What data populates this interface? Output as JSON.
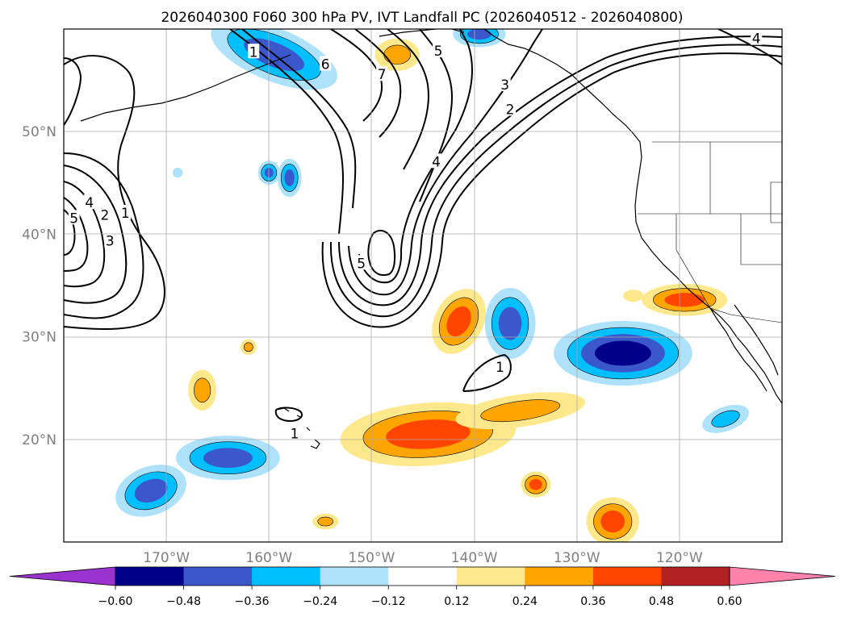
{
  "title": "2026040300 F060 300 hPa PV, IVT Landfall PC (2026040512 - 2026040800)",
  "map": {
    "lon_range": [
      -180,
      -110
    ],
    "lat_range": [
      10,
      60
    ],
    "lat_labels": [
      {
        "lat": 50,
        "label": "50°N"
      },
      {
        "lat": 40,
        "label": "40°N"
      },
      {
        "lat": 30,
        "label": "30°N"
      },
      {
        "lat": 20,
        "label": "20°N"
      }
    ],
    "lon_labels": [
      {
        "lon": -170,
        "label": "170°W"
      },
      {
        "lon": -160,
        "label": "160°W"
      },
      {
        "lon": -150,
        "label": "150°W"
      },
      {
        "lon": -140,
        "label": "140°W"
      },
      {
        "lon": -130,
        "label": "130°W"
      },
      {
        "lon": -120,
        "label": "120°W"
      }
    ],
    "colors": {
      "pos_012": "#fde98c",
      "pos_024": "#ffa500",
      "pos_036": "#ff4500",
      "neg_012": "#aee2fa",
      "neg_024": "#00bfff",
      "neg_036": "#3b57cc",
      "neg_048": "#00008b"
    },
    "ivt_blobs": [
      {
        "lon": -141.5,
        "lat": 31.5,
        "rx": 1.8,
        "ry": 2.8,
        "rot": 28,
        "level": 0.36
      },
      {
        "lon": -136.5,
        "lat": 31.3,
        "rx": 1.9,
        "ry": 2.9,
        "rot": 0,
        "level": -0.36
      },
      {
        "lon": -144.5,
        "lat": 20.5,
        "rx": 8.0,
        "ry": 2.5,
        "rot": -4,
        "level": 0.36
      },
      {
        "lon": -135.5,
        "lat": 22.8,
        "rx": 6.0,
        "ry": 1.2,
        "rot": -8,
        "level": 0.24
      },
      {
        "lon": -125.5,
        "lat": 28.4,
        "rx": 6.0,
        "ry": 2.4,
        "rot": 0,
        "level": -0.48
      },
      {
        "lon": -119.5,
        "lat": 33.6,
        "rx": 3.6,
        "ry": 1.0,
        "rot": 0,
        "level": 0.36
      },
      {
        "lon": -164.0,
        "lat": 18.2,
        "rx": 4.5,
        "ry": 1.6,
        "rot": 0,
        "level": -0.36
      },
      {
        "lon": -171.5,
        "lat": 15.0,
        "rx": 3.0,
        "ry": 1.8,
        "rot": -20,
        "level": -0.36
      },
      {
        "lon": -126.5,
        "lat": 12.0,
        "rx": 2.0,
        "ry": 1.8,
        "rot": 0,
        "level": 0.36
      },
      {
        "lon": -166.5,
        "lat": 24.8,
        "rx": 1.0,
        "ry": 1.6,
        "rot": 0,
        "level": 0.24
      },
      {
        "lon": -134.0,
        "lat": 15.6,
        "rx": 0.9,
        "ry": 0.7,
        "rot": 0,
        "level": 0.36
      },
      {
        "lon": -115.5,
        "lat": 22.0,
        "rx": 2.0,
        "ry": 0.8,
        "rot": -20,
        "level": -0.24
      },
      {
        "lon": -154.5,
        "lat": 12.0,
        "rx": 0.9,
        "ry": 0.4,
        "rot": 0,
        "level": 0.24
      },
      {
        "lon": -158.0,
        "lat": 45.5,
        "rx": 0.6,
        "ry": 1.3,
        "rot": 0,
        "level": -0.36
      },
      {
        "lon": -160.0,
        "lat": 46.0,
        "rx": 0.5,
        "ry": 0.6,
        "rot": 0,
        "level": -0.36
      },
      {
        "lon": -147.5,
        "lat": 57.5,
        "rx": 1.8,
        "ry": 1.2,
        "rot": 0,
        "level": 0.24
      },
      {
        "lon": -159.5,
        "lat": 57.5,
        "rx": 6.0,
        "ry": 2.0,
        "rot": 22,
        "level": -0.36
      },
      {
        "lon": -139.5,
        "lat": 59.5,
        "rx": 2.0,
        "ry": 0.7,
        "rot": 0,
        "level": -0.36
      },
      {
        "lon": -168.9,
        "lat": 46.0,
        "rx": 0.3,
        "ry": 0.3,
        "rot": 0,
        "level": -0.12
      },
      {
        "lon": -162.0,
        "lat": 29.0,
        "rx": 0.4,
        "ry": 0.4,
        "rot": 0,
        "level": 0.24
      },
      {
        "lon": -124.5,
        "lat": 34.0,
        "rx": 0.8,
        "ry": 0.4,
        "rot": 0,
        "level": 0.12
      }
    ],
    "pv_labels": [
      {
        "lon": -177.5,
        "lat": 43.0,
        "text": "4"
      },
      {
        "lon": -179.0,
        "lat": 41.5,
        "text": "5"
      },
      {
        "lon": -176.0,
        "lat": 41.8,
        "text": "2"
      },
      {
        "lon": -174.0,
        "lat": 42.0,
        "text": "1"
      },
      {
        "lon": -175.5,
        "lat": 39.3,
        "text": "3"
      },
      {
        "lon": -161.5,
        "lat": 57.7,
        "text": "1"
      },
      {
        "lon": -154.5,
        "lat": 56.5,
        "text": "6"
      },
      {
        "lon": -149.0,
        "lat": 55.5,
        "text": "7"
      },
      {
        "lon": -143.5,
        "lat": 57.8,
        "text": "5"
      },
      {
        "lon": -137.0,
        "lat": 54.5,
        "text": "3"
      },
      {
        "lon": -136.5,
        "lat": 52.1,
        "text": "2"
      },
      {
        "lon": -151.0,
        "lat": 37.1,
        "text": "5"
      },
      {
        "lon": -143.7,
        "lat": 47.0,
        "text": "4"
      },
      {
        "lon": -137.5,
        "lat": 27.0,
        "text": "1"
      },
      {
        "lon": -157.5,
        "lat": 20.5,
        "text": "1"
      },
      {
        "lon": -112.5,
        "lat": 59.0,
        "text": "4"
      }
    ]
  },
  "colorbar": {
    "levels": [
      -0.6,
      -0.48,
      -0.36,
      -0.24,
      -0.12,
      0.12,
      0.24,
      0.36,
      0.48,
      0.6
    ],
    "tick_labels": [
      "−0.60",
      "−0.48",
      "−0.36",
      "−0.24",
      "−0.12",
      "0.12",
      "0.24",
      "0.36",
      "0.48",
      "0.60"
    ],
    "colors": [
      "#9a32cd",
      "#00008b",
      "#3b57cc",
      "#00bfff",
      "#aee2fa",
      "#ffffff",
      "#fde98c",
      "#ffa500",
      "#ff4500",
      "#b22222",
      "#ff82ab"
    ]
  }
}
